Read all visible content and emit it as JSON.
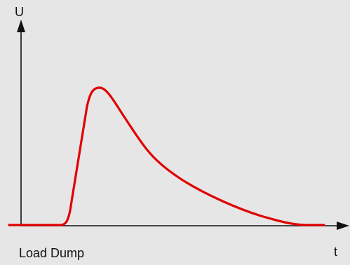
{
  "diagram": {
    "y_axis_label": "U",
    "x_axis_label": "t",
    "caption": "Load Dump",
    "colors": {
      "background": "#e6e6e6",
      "axes": "#111111",
      "curve": "#e00000"
    }
  }
}
